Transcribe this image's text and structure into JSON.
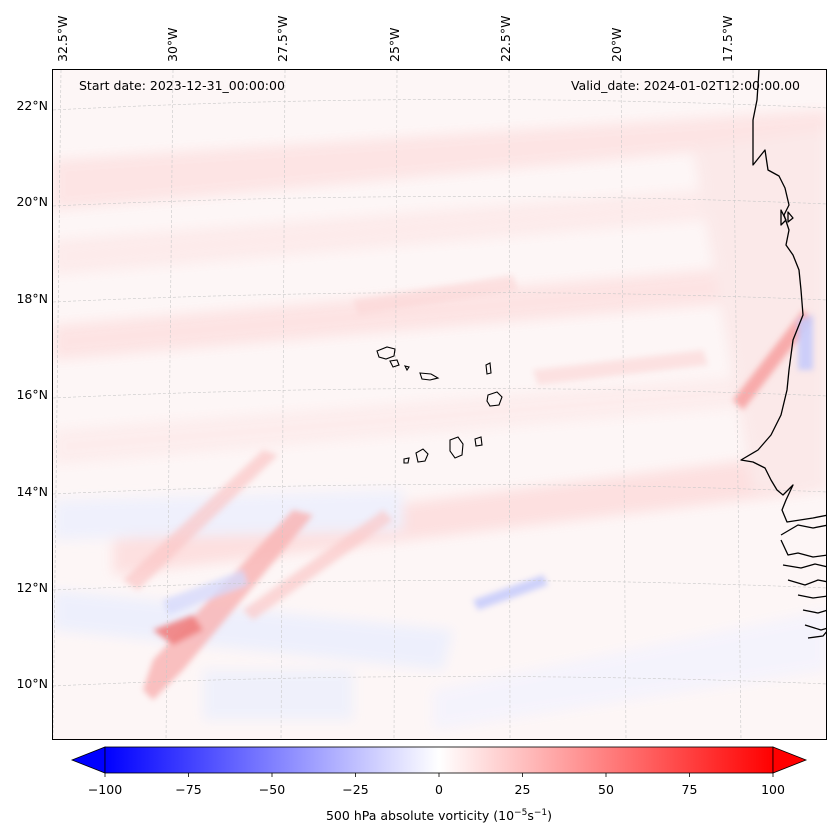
{
  "header": {
    "start_date": "Start date: 2023-12-31_00:00:00",
    "valid_date": "Valid_date: 2024-01-02T12:00:00.00"
  },
  "map": {
    "longitude_labels": [
      "32.5°W",
      "30°W",
      "27.5°W",
      "25°W",
      "22.5°W",
      "20°W",
      "17.5°W"
    ],
    "latitude_labels": [
      "22°N",
      "20°N",
      "18°N",
      "16°N",
      "14°N",
      "12°N",
      "10°N"
    ],
    "colors": {
      "background": "#fdf6f6",
      "coastline": "#000000",
      "gridline": "#c8c8c8"
    }
  },
  "colorbar": {
    "ticks": [
      "−100",
      "−75",
      "−50",
      "−25",
      "0",
      "25",
      "50",
      "75",
      "100"
    ],
    "label_prefix": "500 hPa absolute vorticity (10",
    "label_exp1": "−5",
    "label_mid": "s",
    "label_exp2": "−1",
    "label_suffix": ")",
    "range": [
      -100,
      100
    ],
    "colors": {
      "min": "#0000ff",
      "mid": "#ffffff",
      "max": "#ff0000"
    }
  }
}
